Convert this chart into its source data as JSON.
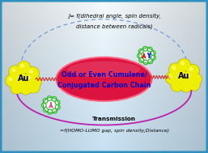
{
  "bg_left": "#c8e8f8",
  "bg_right": "#ddf0ff",
  "bg_top": "#e8f6ff",
  "bg_bottom": "#90c8e8",
  "border_color": "#3090c0",
  "title_line1": "J= f(dihedral angle, spin density,",
  "title_line2": "distance between radicals)",
  "bottom_label": "Transmission",
  "bottom_sub": "=f(HOMO-LUMO gap, spin density,Distance)",
  "center_line1": "Odd or Even Cumulene/",
  "center_line2": "Conjugated Carbon Chain",
  "au_label": "Au",
  "ellipse_facecolor": "#dd0030",
  "ellipse_edgecolor": "#ff6080",
  "ellipse_alpha": 0.92,
  "dashed_arc_color": "#7799dd",
  "solid_arc_color": "#bb22aa",
  "wavy_color_left": "#cc3333",
  "wavy_color_right": "#cc3333",
  "radical_edge_color": "#33bb33",
  "radical_fill_color": "#ffffff",
  "arrow_red": "#ee1111",
  "arrow_pink": "#ee4488",
  "arrow_blue": "#2233ee",
  "au_color": "#eeee00",
  "au_shine": "#ffff88",
  "au_edge": "#aaaa00",
  "center_text_color": "#0000cc",
  "title_color": "#000000",
  "bottom_color": "#000000",
  "figsize": [
    2.57,
    1.89
  ],
  "dpi": 100
}
